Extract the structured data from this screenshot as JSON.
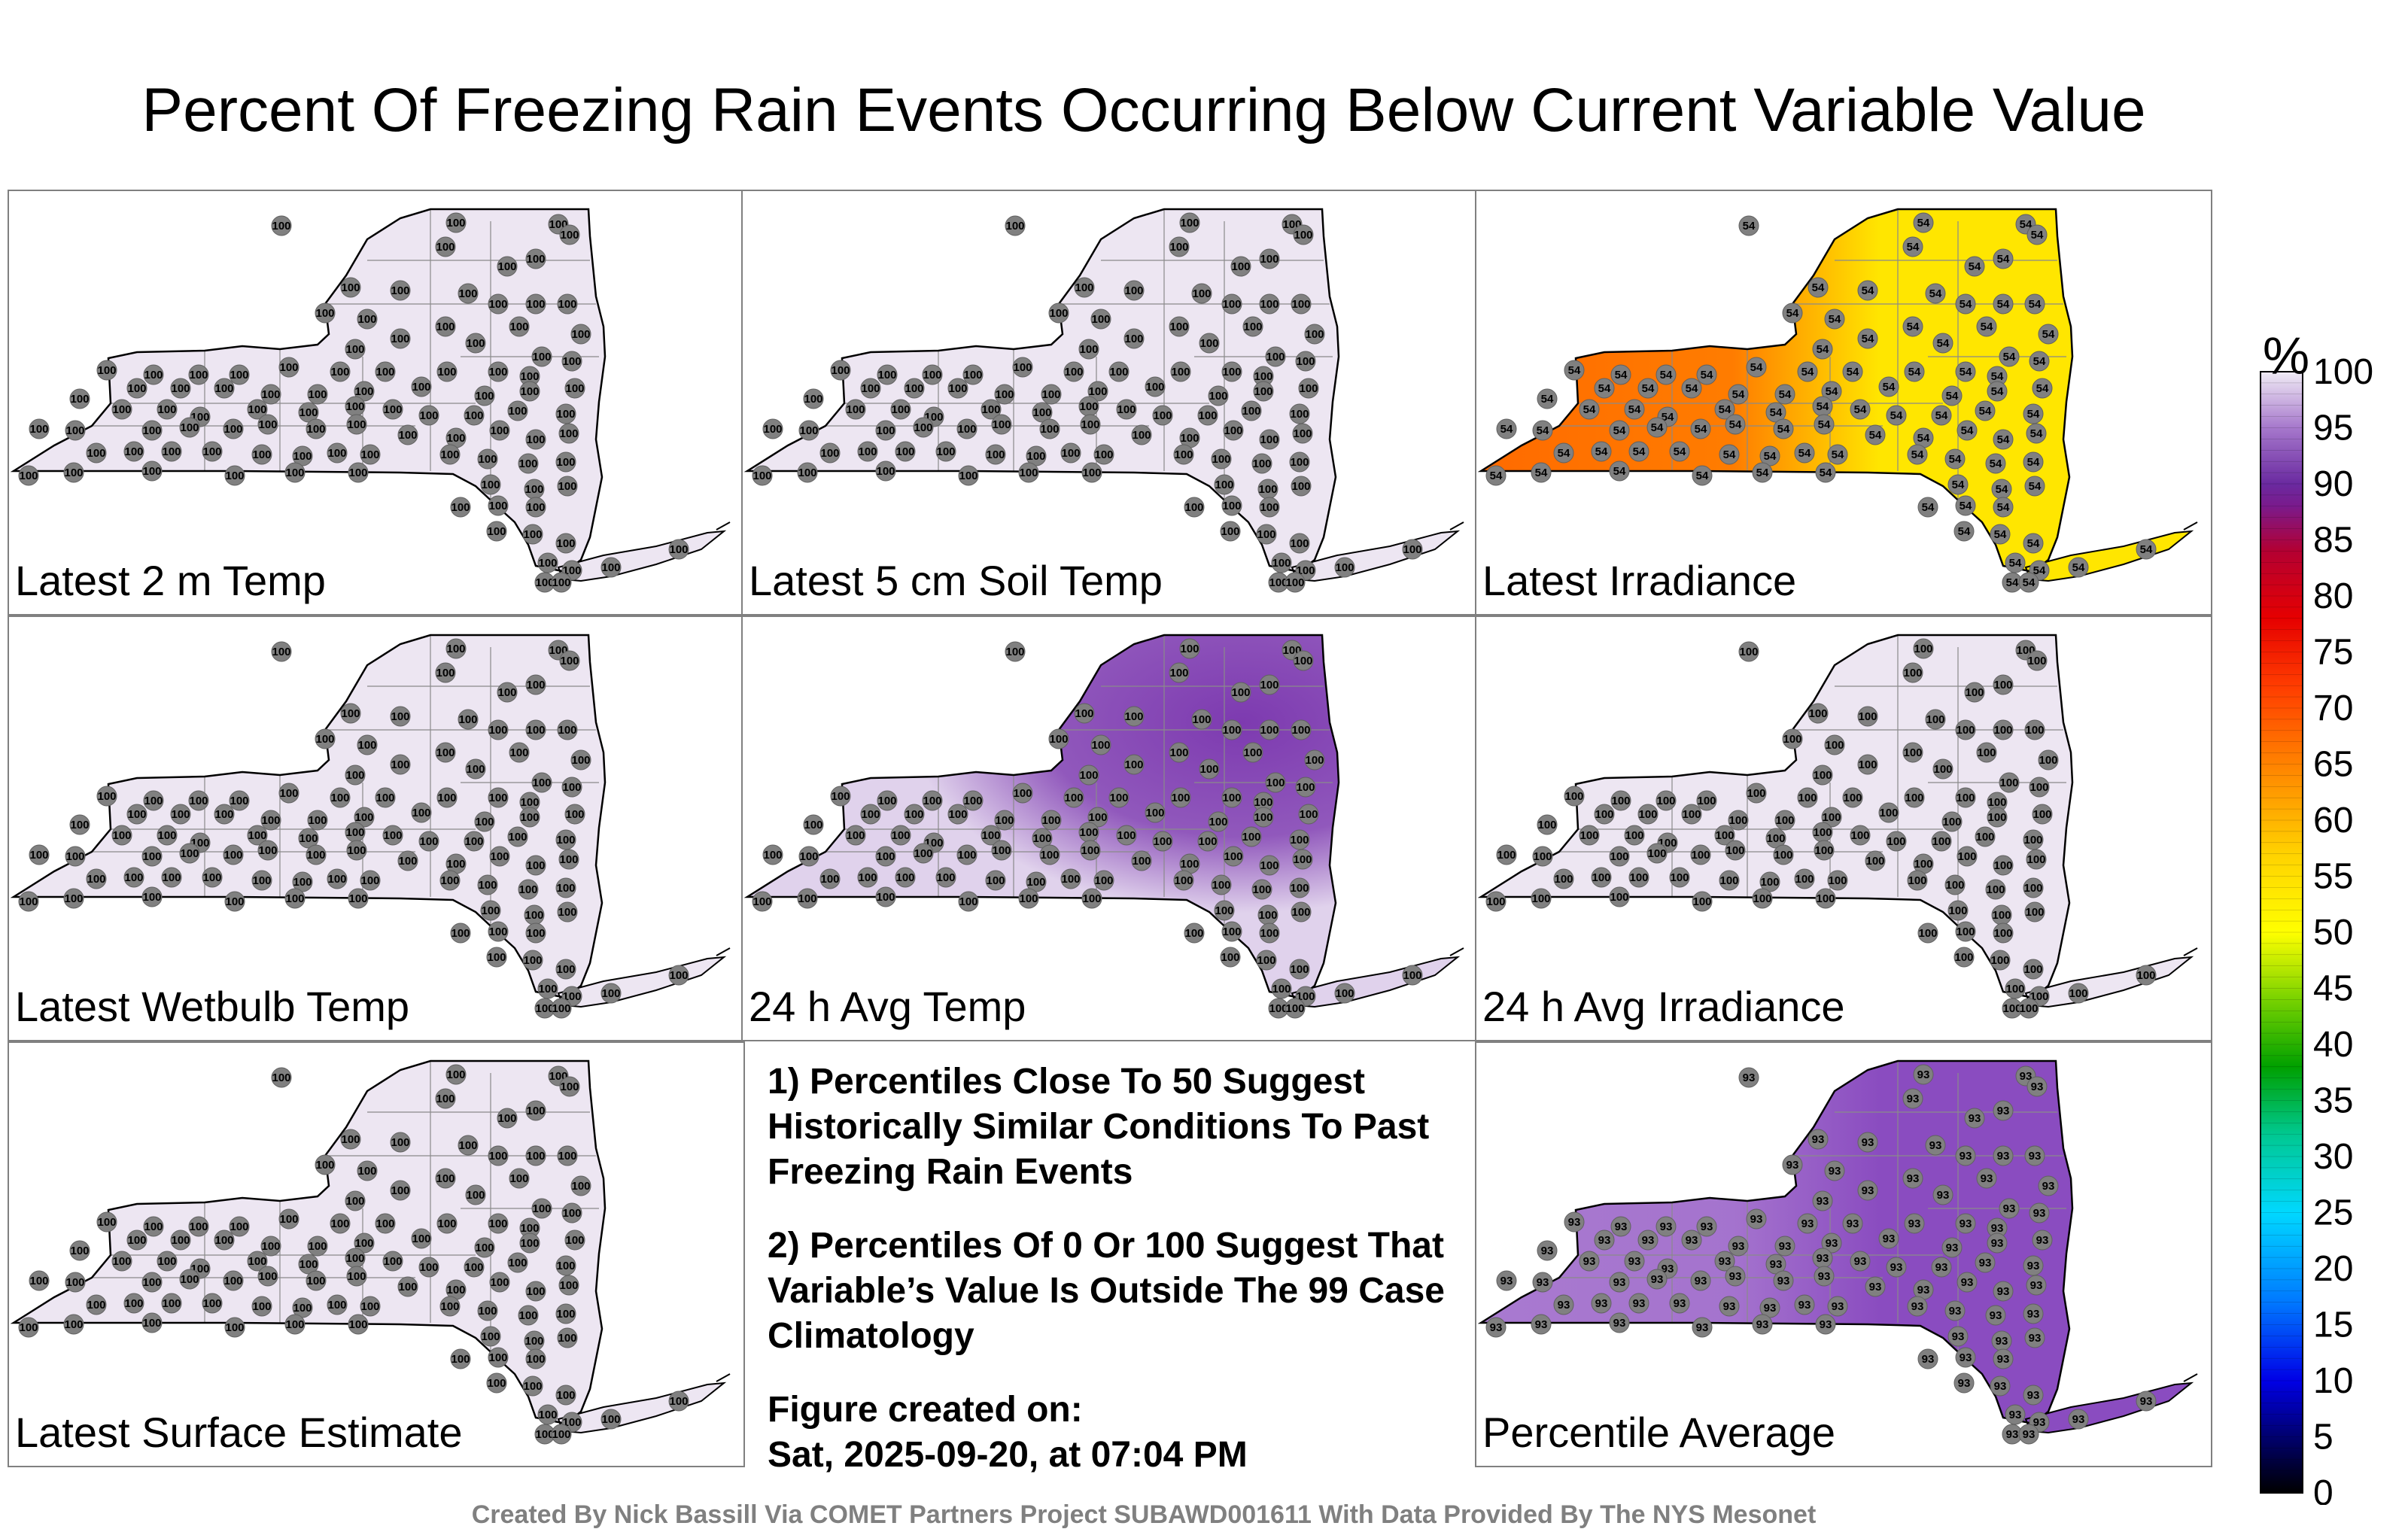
{
  "title": "Percent Of Freezing Rain Events Occurring Below Current Variable Value",
  "panels": [
    {
      "label": "Latest 2 m Temp",
      "fill": "#ede6f2",
      "value": "100"
    },
    {
      "label": "Latest 5 cm Soil Temp",
      "fill": "#ede6f2",
      "value": "100"
    },
    {
      "label": "Latest Irradiance",
      "fill": "#ffe600",
      "value": "54",
      "west_fill": "#ff6a00"
    },
    {
      "label": "Latest Wetbulb Temp",
      "fill": "#ede6f2",
      "value": "100"
    },
    {
      "label": "24 h Avg Temp",
      "fill": "#e0d2ec",
      "value": "100",
      "east_fill": "#7d3ab0"
    },
    {
      "label": "24 h Avg Irradiance",
      "fill": "#ede6f2",
      "value": "100"
    },
    {
      "label": "Latest Surface Estimate",
      "fill": "#ede6f2",
      "value": "100"
    },
    {
      "label": "Percentile Average",
      "fill": "#8a4cc0",
      "value": "93",
      "west_fill": "#a97ad0"
    }
  ],
  "notes": [
    "1) Percentiles Close To 50 Suggest Historically Similar Conditions To Past Freezing Rain Events",
    "2) Percentiles Of 0 Or 100 Suggest That Variable’s Value Is Outside The 99 Case Climatology"
  ],
  "created_heading": "Figure created on:",
  "created_date": "Sat, 2025-09-20, at 07:04 PM",
  "footer": "Created By Nick Bassill Via COMET Partners Project SUBAWD001611 With Data Provided By The NYS Mesonet",
  "chart_data": {
    "type": "heatmap",
    "title": "Percent Of Freezing Rain Events Occurring Below Current Variable Value",
    "colorbar_label": "%",
    "colorbar_range": [
      0,
      100
    ],
    "colorbar_ticks": [
      "0",
      "5",
      "10",
      "15",
      "20",
      "25",
      "30",
      "35",
      "40",
      "45",
      "50",
      "55",
      "60",
      "65",
      "70",
      "75",
      "80",
      "85",
      "90",
      "95",
      "100"
    ],
    "colorbar_stops": [
      {
        "v": 0,
        "c": "#000000"
      },
      {
        "v": 5,
        "c": "#00006e"
      },
      {
        "v": 10,
        "c": "#0000e6"
      },
      {
        "v": 17,
        "c": "#0078ff"
      },
      {
        "v": 25,
        "c": "#00d8ff"
      },
      {
        "v": 32,
        "c": "#00c890"
      },
      {
        "v": 38,
        "c": "#00a000"
      },
      {
        "v": 44,
        "c": "#78d200"
      },
      {
        "v": 50,
        "c": "#ffff00"
      },
      {
        "v": 57,
        "c": "#ffd200"
      },
      {
        "v": 64,
        "c": "#ff8c00"
      },
      {
        "v": 72,
        "c": "#ff3c00"
      },
      {
        "v": 78,
        "c": "#e60000"
      },
      {
        "v": 84,
        "c": "#b40032"
      },
      {
        "v": 88,
        "c": "#7a1a8c"
      },
      {
        "v": 90,
        "c": "#6a2aa0"
      },
      {
        "v": 95,
        "c": "#a678cc"
      },
      {
        "v": 100,
        "c": "#f0ebf5"
      }
    ]
  }
}
